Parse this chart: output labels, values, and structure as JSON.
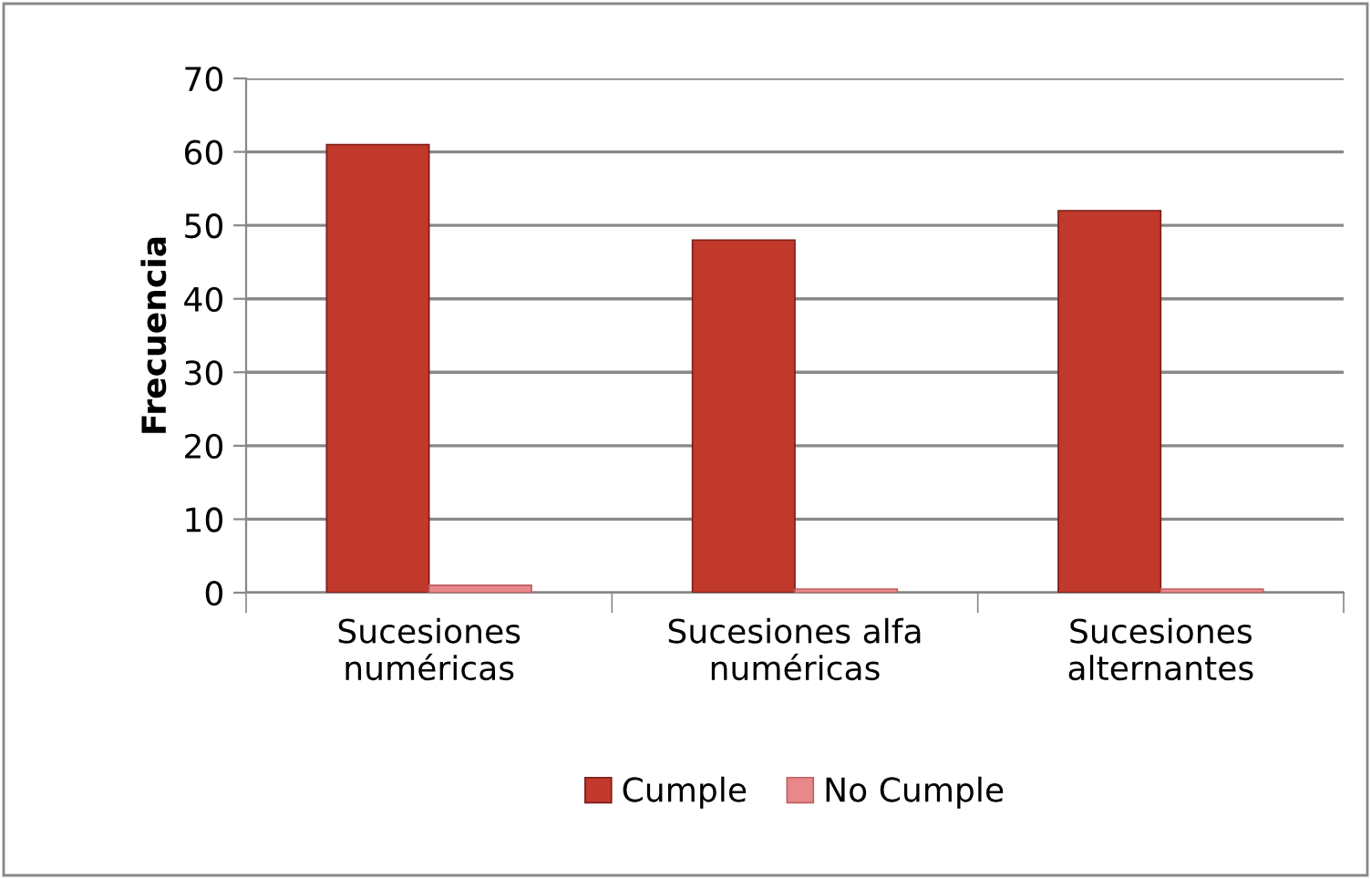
{
  "chart_data": {
    "type": "bar",
    "ylabel": "Frecuencia",
    "categories": [
      "Sucesiones\nnuméricas",
      "Sucesiones alfa\nnuméricas",
      "Sucesiones\nalternantes"
    ],
    "series": [
      {
        "name": "Cumple",
        "color": "#c0392b",
        "values": [
          61,
          48,
          52
        ]
      },
      {
        "name": "No Cumple",
        "color": "#e8888a",
        "values": [
          1,
          0.5,
          0.5
        ]
      }
    ],
    "ylim": [
      0,
      70
    ],
    "yticks": [
      0,
      10,
      20,
      30,
      40,
      50,
      60,
      70
    ],
    "grid": "y",
    "legend": "bottom"
  }
}
